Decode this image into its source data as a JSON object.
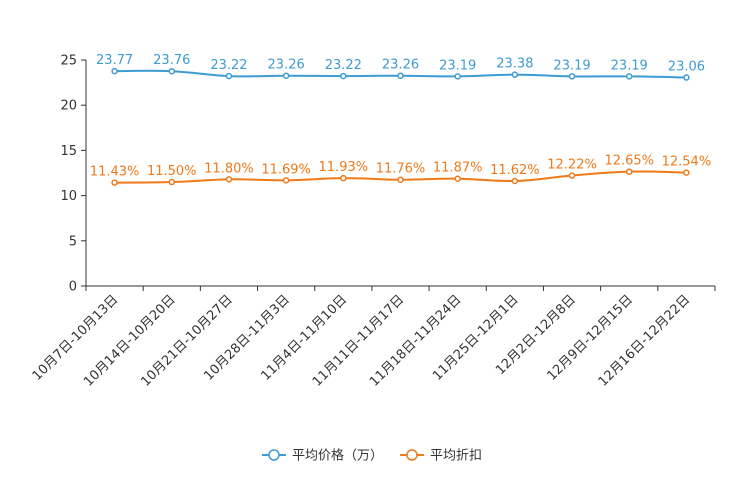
{
  "chart_data": {
    "type": "line",
    "categories": [
      "10月7日-10月13日",
      "10月14日-10月20日",
      "10月21日-10月27日",
      "10月28日-11月3日",
      "11月4日-11月10日",
      "11月11日-11月17日",
      "11月18日-11月24日",
      "11月25日-12月1日",
      "12月2日-12月8日",
      "12月9日-12月15日",
      "12月16日-12月22日"
    ],
    "ylim": [
      0,
      25
    ],
    "yticks": [
      "0",
      "5",
      "10",
      "15",
      "20",
      "25"
    ],
    "series": [
      {
        "name": "平均价格（万）",
        "color": "#3d9cd2",
        "values": [
          23.77,
          23.76,
          23.22,
          23.26,
          23.22,
          23.26,
          23.19,
          23.38,
          23.19,
          23.19,
          23.06
        ],
        "labels": [
          "23.77",
          "23.76",
          "23.22",
          "23.26",
          "23.22",
          "23.26",
          "23.19",
          "23.38",
          "23.19",
          "23.19",
          "23.06"
        ]
      },
      {
        "name": "平均折扣",
        "color": "#f07a1a",
        "values": [
          11.43,
          11.5,
          11.8,
          11.69,
          11.93,
          11.76,
          11.87,
          11.62,
          12.22,
          12.65,
          12.54
        ],
        "labels": [
          "11.43%",
          "11.50%",
          "11.80%",
          "11.69%",
          "11.93%",
          "11.76%",
          "11.87%",
          "11.62%",
          "12.22%",
          "12.65%",
          "12.54%"
        ]
      }
    ]
  }
}
